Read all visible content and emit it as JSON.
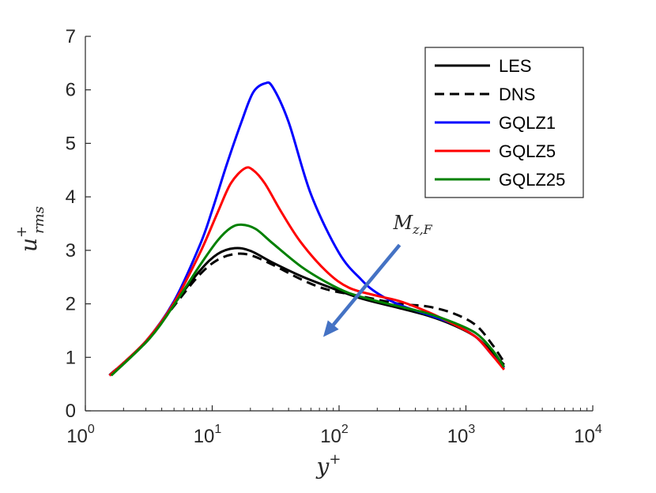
{
  "chart_data": {
    "type": "line",
    "title": "",
    "xlabel": {
      "base": "y",
      "sup": "+"
    },
    "ylabel": {
      "base": "u",
      "sup": "+",
      "sub": "rms"
    },
    "xscale": "log",
    "xlim": [
      1,
      10000
    ],
    "ylim": [
      0,
      7
    ],
    "grid": false,
    "legend_position": "top-right",
    "x_ticks": [
      {
        "base": "10",
        "exp": "0",
        "value": 1
      },
      {
        "base": "10",
        "exp": "1",
        "value": 10
      },
      {
        "base": "10",
        "exp": "2",
        "value": 100
      },
      {
        "base": "10",
        "exp": "3",
        "value": 1000
      },
      {
        "base": "10",
        "exp": "4",
        "value": 10000
      }
    ],
    "y_ticks": [
      "0",
      "1",
      "2",
      "3",
      "4",
      "5",
      "6",
      "7"
    ],
    "series": [
      {
        "name": "LES",
        "color": "#000000",
        "dash": "solid",
        "points": [
          [
            1.55,
            0.66
          ],
          [
            3.0,
            1.3
          ],
          [
            5.0,
            2.0
          ],
          [
            8.0,
            2.62
          ],
          [
            11.0,
            2.93
          ],
          [
            15.0,
            3.04
          ],
          [
            20.0,
            2.99
          ],
          [
            30.0,
            2.77
          ],
          [
            50.0,
            2.52
          ],
          [
            80.0,
            2.33
          ],
          [
            150.0,
            2.1
          ],
          [
            300.0,
            1.92
          ],
          [
            500.0,
            1.78
          ],
          [
            800.0,
            1.6
          ],
          [
            1200.0,
            1.38
          ],
          [
            1600.0,
            1.1
          ],
          [
            2000.0,
            0.86
          ]
        ]
      },
      {
        "name": "DNS",
        "color": "#000000",
        "dash": "dashed",
        "points": [
          [
            1.55,
            0.67
          ],
          [
            3.0,
            1.28
          ],
          [
            5.0,
            1.96
          ],
          [
            8.0,
            2.55
          ],
          [
            11.0,
            2.82
          ],
          [
            15.0,
            2.93
          ],
          [
            20.0,
            2.91
          ],
          [
            30.0,
            2.73
          ],
          [
            50.0,
            2.46
          ],
          [
            80.0,
            2.27
          ],
          [
            150.0,
            2.14
          ],
          [
            300.0,
            2.0
          ],
          [
            500.0,
            1.95
          ],
          [
            800.0,
            1.82
          ],
          [
            1200.0,
            1.6
          ],
          [
            1600.0,
            1.25
          ],
          [
            2000.0,
            0.91
          ]
        ]
      },
      {
        "name": "GQLZ1",
        "color": "#0000FF",
        "dash": "solid",
        "points": [
          [
            1.55,
            0.66
          ],
          [
            3.0,
            1.3
          ],
          [
            5.0,
            2.05
          ],
          [
            8.0,
            3.1
          ],
          [
            10.0,
            3.75
          ],
          [
            13.0,
            4.6
          ],
          [
            17.0,
            5.4
          ],
          [
            21.0,
            5.95
          ],
          [
            26.0,
            6.12
          ],
          [
            30.0,
            6.05
          ],
          [
            40.0,
            5.4
          ],
          [
            60.0,
            4.05
          ],
          [
            100.0,
            2.95
          ],
          [
            150.0,
            2.45
          ],
          [
            200.0,
            2.2
          ],
          [
            300.0,
            1.98
          ],
          [
            500.0,
            1.8
          ],
          [
            800.0,
            1.62
          ],
          [
            1200.0,
            1.38
          ],
          [
            1600.0,
            1.05
          ],
          [
            2000.0,
            0.8
          ]
        ]
      },
      {
        "name": "GQLZ5",
        "color": "#FF0000",
        "dash": "solid",
        "points": [
          [
            1.55,
            0.66
          ],
          [
            3.0,
            1.3
          ],
          [
            5.0,
            2.02
          ],
          [
            8.0,
            2.95
          ],
          [
            11.0,
            3.7
          ],
          [
            14.0,
            4.25
          ],
          [
            18.0,
            4.53
          ],
          [
            21.0,
            4.5
          ],
          [
            26.0,
            4.25
          ],
          [
            35.0,
            3.72
          ],
          [
            50.0,
            3.15
          ],
          [
            80.0,
            2.6
          ],
          [
            120.0,
            2.3
          ],
          [
            200.0,
            2.15
          ],
          [
            300.0,
            2.05
          ],
          [
            500.0,
            1.85
          ],
          [
            800.0,
            1.62
          ],
          [
            1200.0,
            1.38
          ],
          [
            1600.0,
            1.05
          ],
          [
            2000.0,
            0.77
          ]
        ]
      },
      {
        "name": "GQLZ25",
        "color": "#008000",
        "dash": "solid",
        "points": [
          [
            1.6,
            0.66
          ],
          [
            3.2,
            1.35
          ],
          [
            5.0,
            1.98
          ],
          [
            8.0,
            2.72
          ],
          [
            11.0,
            3.18
          ],
          [
            14.0,
            3.42
          ],
          [
            17.0,
            3.48
          ],
          [
            22.0,
            3.4
          ],
          [
            30.0,
            3.13
          ],
          [
            50.0,
            2.7
          ],
          [
            80.0,
            2.4
          ],
          [
            120.0,
            2.2
          ],
          [
            200.0,
            2.05
          ],
          [
            300.0,
            1.95
          ],
          [
            500.0,
            1.82
          ],
          [
            800.0,
            1.65
          ],
          [
            1200.0,
            1.45
          ],
          [
            1600.0,
            1.15
          ],
          [
            2000.0,
            0.82
          ]
        ]
      }
    ],
    "annotation": {
      "text": {
        "base": "M",
        "sub": "z,F"
      },
      "arrow_from": [
        300,
        3.1
      ],
      "arrow_to": [
        75,
        1.38
      ],
      "arrow_color": "#4472C4"
    }
  }
}
